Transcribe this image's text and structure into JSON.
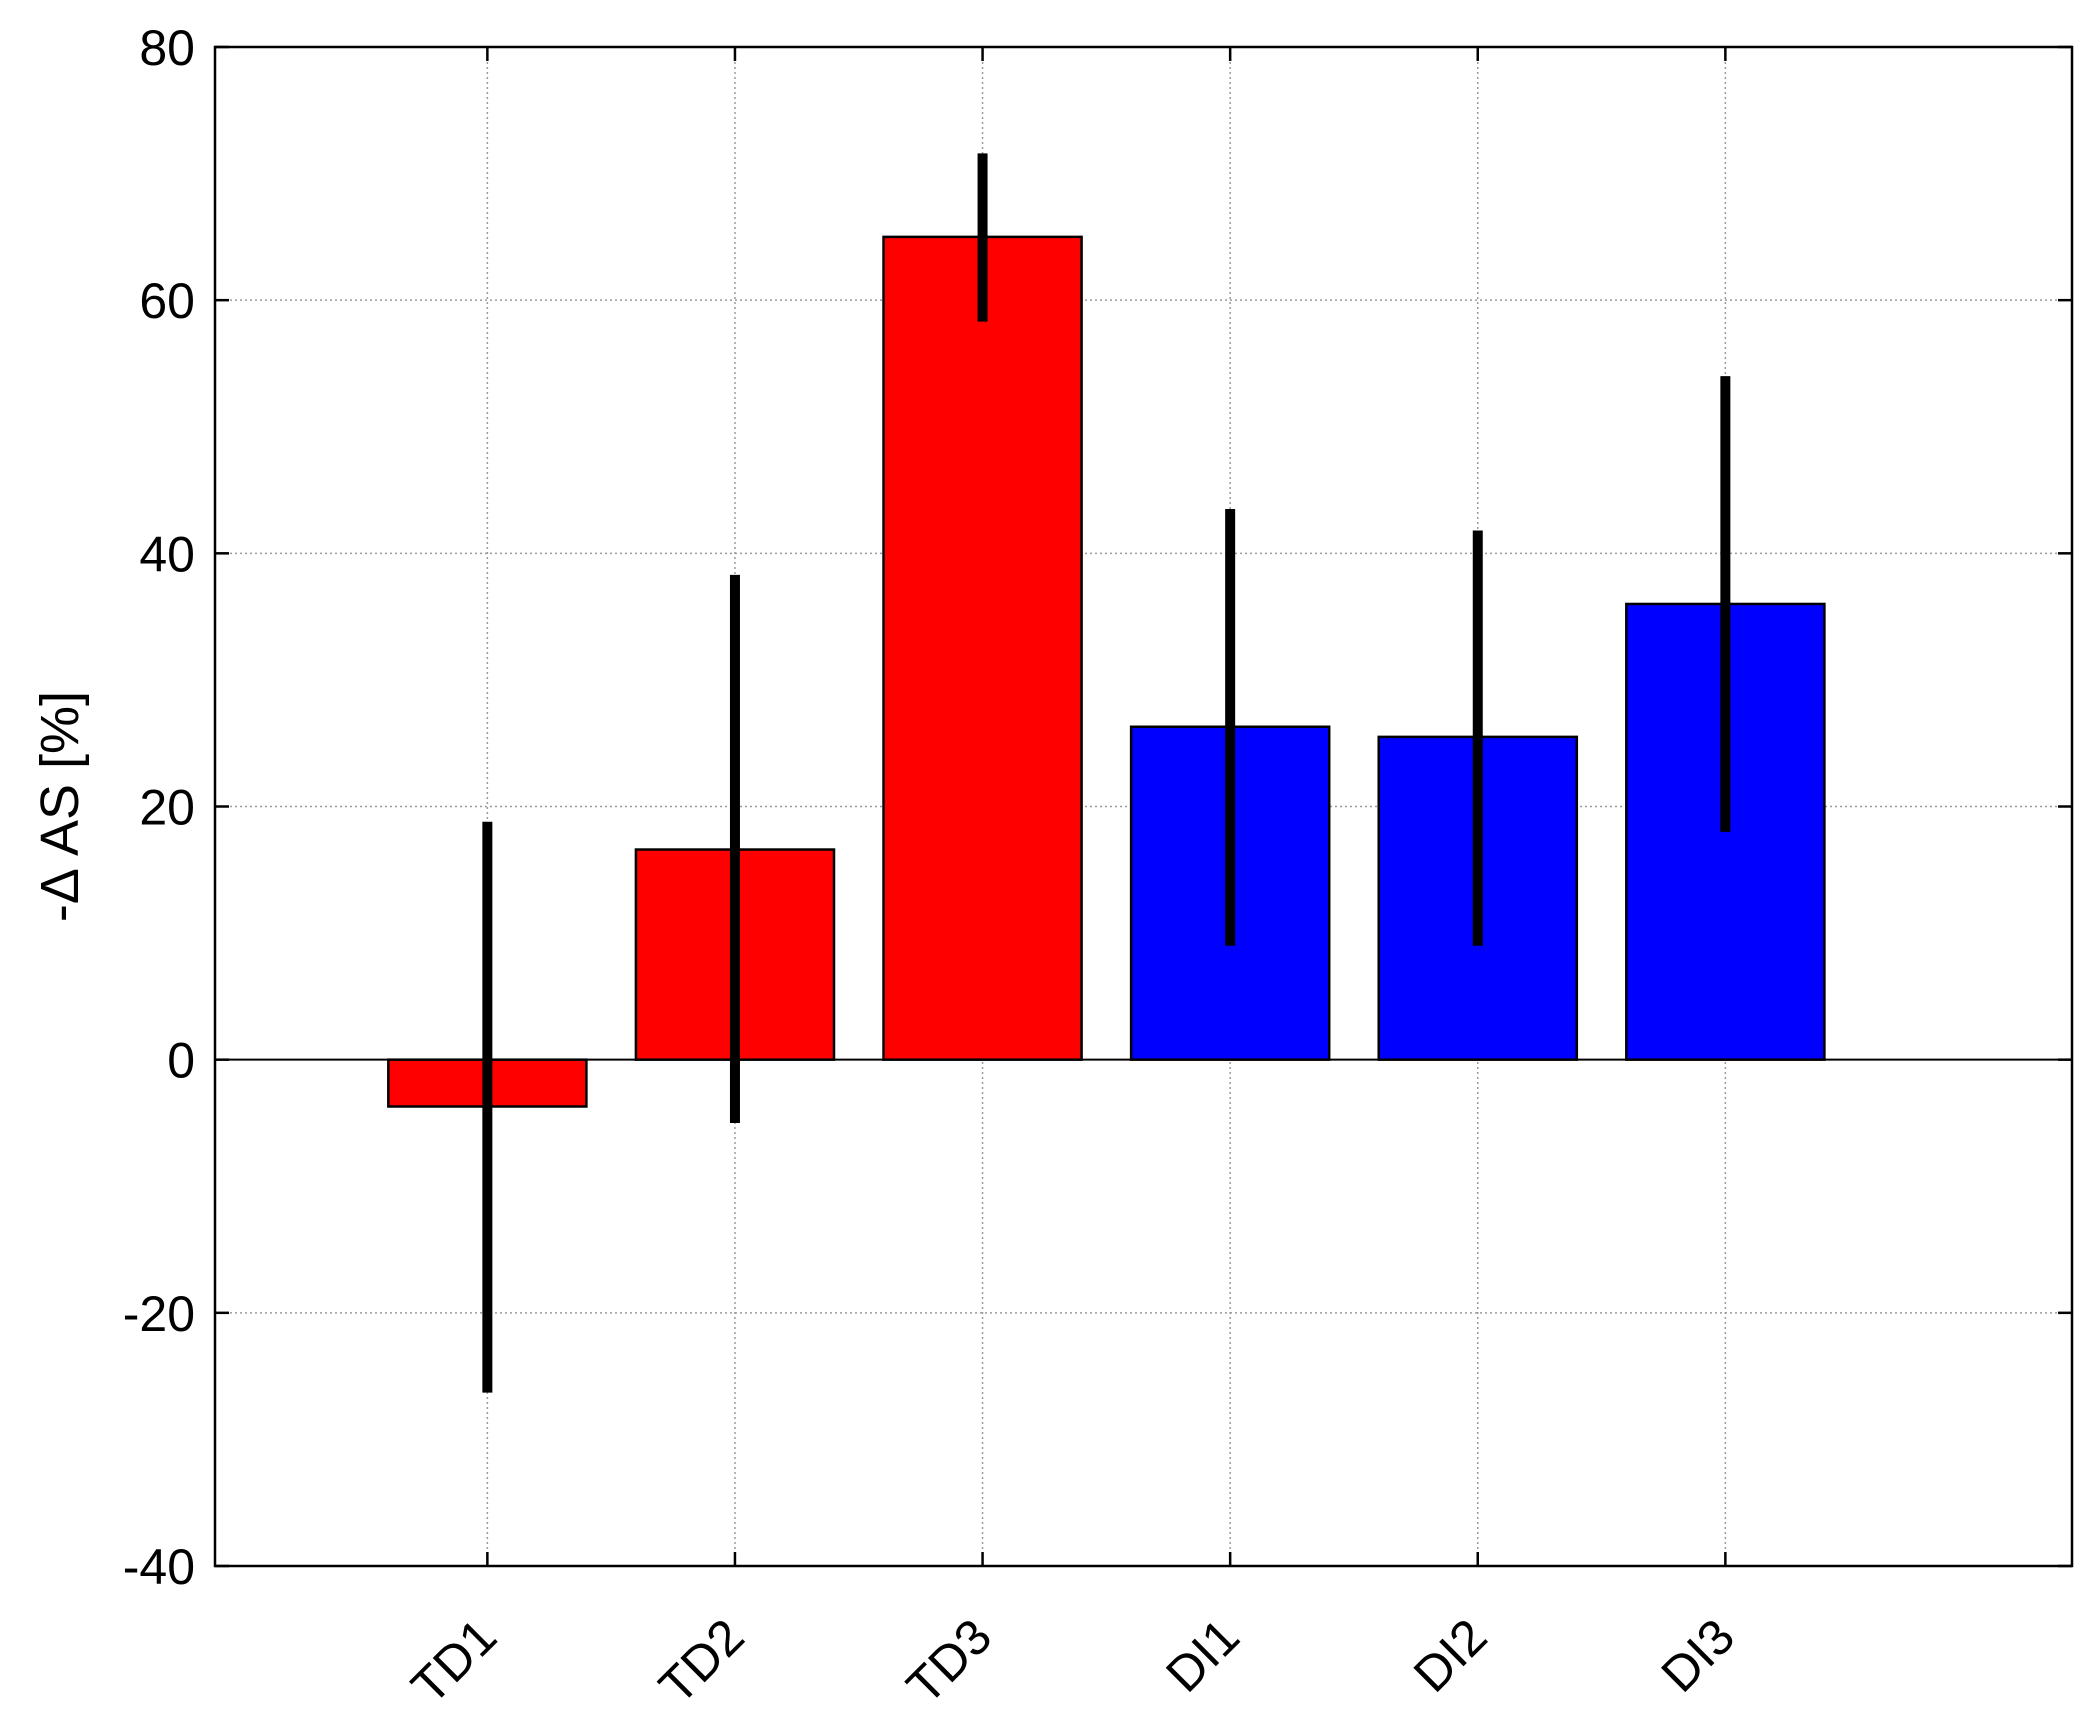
{
  "chart_data": {
    "type": "bar",
    "ylabel": "-Δ AS [%]",
    "xlabel": "",
    "categories": [
      "TD1",
      "TD2",
      "TD3",
      "DI1",
      "DI2",
      "DI3"
    ],
    "values": [
      -3.7,
      16.6,
      65.0,
      26.3,
      25.5,
      36.0
    ],
    "error_low": [
      -26.3,
      -5.0,
      58.3,
      9.0,
      9.0,
      18.0
    ],
    "error_high": [
      18.8,
      38.3,
      71.6,
      43.5,
      41.8,
      54.0
    ],
    "bar_colors": [
      "#ff0000",
      "#ff0000",
      "#ff0000",
      "#0000ff",
      "#0000ff",
      "#0000ff"
    ],
    "ylim": [
      -40,
      80
    ],
    "yticks": [
      -40,
      -20,
      0,
      20,
      40,
      60,
      80
    ],
    "ytick_labels": [
      "-40",
      "-20",
      "0",
      "20",
      "40",
      "60",
      "80"
    ],
    "grid": true
  }
}
